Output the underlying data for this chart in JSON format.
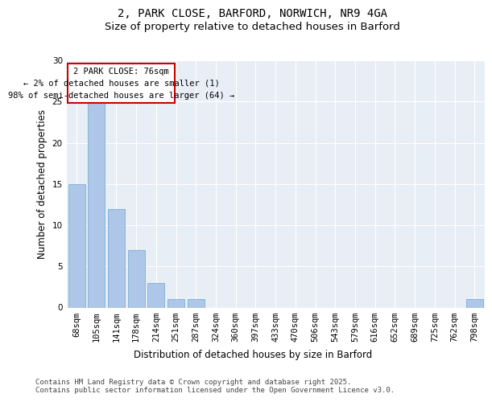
{
  "title_line1": "2, PARK CLOSE, BARFORD, NORWICH, NR9 4GA",
  "title_line2": "Size of property relative to detached houses in Barford",
  "xlabel": "Distribution of detached houses by size in Barford",
  "ylabel": "Number of detached properties",
  "categories": [
    "68sqm",
    "105sqm",
    "141sqm",
    "178sqm",
    "214sqm",
    "251sqm",
    "287sqm",
    "324sqm",
    "360sqm",
    "397sqm",
    "433sqm",
    "470sqm",
    "506sqm",
    "543sqm",
    "579sqm",
    "616sqm",
    "652sqm",
    "689sqm",
    "725sqm",
    "762sqm",
    "798sqm"
  ],
  "values": [
    15,
    27,
    12,
    7,
    3,
    1,
    1,
    0,
    0,
    0,
    0,
    0,
    0,
    0,
    0,
    0,
    0,
    0,
    0,
    0,
    1
  ],
  "bar_color": "#aec6e8",
  "bar_edgecolor": "#7aafd4",
  "annotation_text": "2 PARK CLOSE: 76sqm\n← 2% of detached houses are smaller (1)\n98% of semi-detached houses are larger (64) →",
  "annotation_box_edgecolor": "#cc0000",
  "background_color": "#e8eef6",
  "ylim": [
    0,
    30
  ],
  "yticks": [
    0,
    5,
    10,
    15,
    20,
    25,
    30
  ],
  "footer_text": "Contains HM Land Registry data © Crown copyright and database right 2025.\nContains public sector information licensed under the Open Government Licence v3.0.",
  "title_fontsize": 10,
  "subtitle_fontsize": 9.5,
  "axis_label_fontsize": 8.5,
  "tick_fontsize": 7.5,
  "annotation_fontsize": 7.5,
  "footer_fontsize": 6.5
}
